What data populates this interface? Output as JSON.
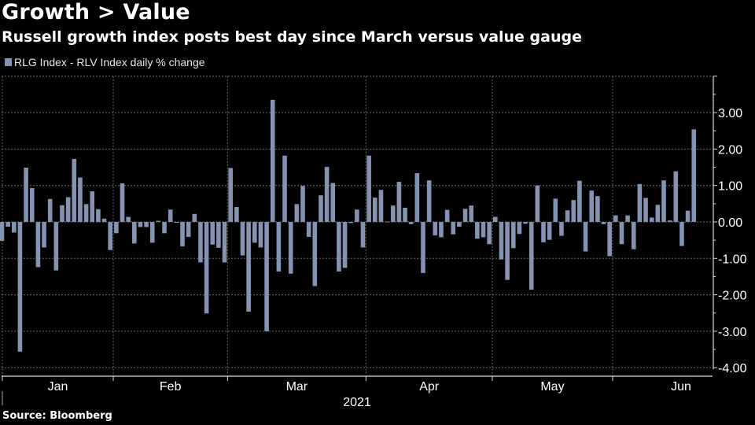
{
  "header": {
    "title": "Growth > Value",
    "subtitle": "Russell growth index posts best day since March versus value gauge"
  },
  "legend": {
    "label": "RLG Index - RLV Index daily % change",
    "color": "#8593b3"
  },
  "footer": {
    "source": "Source: Bloomberg"
  },
  "chart_data": {
    "type": "bar",
    "title": "Growth > Value",
    "subtitle": "Russell growth index posts best day since March versus value gauge",
    "series": [
      {
        "name": "RLG Index - RLV Index daily % change",
        "values": [
          -0.52,
          -0.13,
          -0.29,
          -3.56,
          1.49,
          0.93,
          -1.24,
          -0.7,
          0.63,
          -1.33,
          0.46,
          0.68,
          1.73,
          1.22,
          0.49,
          0.84,
          0.35,
          0.09,
          -0.77,
          -0.31,
          1.06,
          0.14,
          -0.59,
          -0.14,
          -0.14,
          -0.57,
          0.03,
          -0.31,
          0.34,
          -0.01,
          -0.67,
          -0.41,
          0.22,
          -1.11,
          -2.51,
          -0.62,
          -0.71,
          -1.11,
          1.48,
          0.41,
          -0.92,
          -2.46,
          -0.57,
          -0.7,
          -3.0,
          3.35,
          -1.36,
          1.82,
          -1.42,
          0.49,
          0.99,
          -0.41,
          -1.76,
          0.73,
          1.51,
          1.07,
          -1.36,
          -1.26,
          -0.03,
          0.34,
          -0.7,
          1.82,
          0.67,
          0.88,
          0.01,
          0.45,
          1.1,
          0.39,
          -0.06,
          1.34,
          -1.4,
          1.14,
          -0.37,
          -0.42,
          0.33,
          -0.34,
          -0.13,
          0.36,
          0.45,
          -0.46,
          -0.42,
          -0.61,
          0.14,
          -1.03,
          -1.59,
          -0.72,
          -0.33,
          -0.05,
          -1.86,
          1.0,
          -0.56,
          -0.49,
          0.64,
          -0.38,
          0.32,
          0.6,
          1.13,
          -0.81,
          0.86,
          0.71,
          -0.06,
          -0.94,
          0.18,
          -0.61,
          0.18,
          -0.75,
          1.04,
          0.66,
          0.12,
          0.47,
          1.14,
          0.04,
          1.39,
          -0.66,
          0.31,
          2.54
        ]
      }
    ],
    "x_month_labels": [
      "Jan",
      "Feb",
      "Mar",
      "Apr",
      "May",
      "Jun"
    ],
    "x_month_start_index": [
      0,
      19,
      38,
      61,
      82,
      102
    ],
    "x_year_label": "2021",
    "y_ticks": [
      3,
      2,
      1,
      0,
      -1,
      -2,
      -3,
      -4
    ],
    "y_tick_labels": [
      "3.00",
      "2.00",
      "1.00",
      "0.00",
      "-1.00",
      "-2.00",
      "-3.00",
      "-4.00"
    ],
    "ylim": [
      -4,
      4
    ],
    "xlabel": "",
    "ylabel": "",
    "grid": true,
    "legend_position": "top-left",
    "y_axis_side": "right"
  }
}
